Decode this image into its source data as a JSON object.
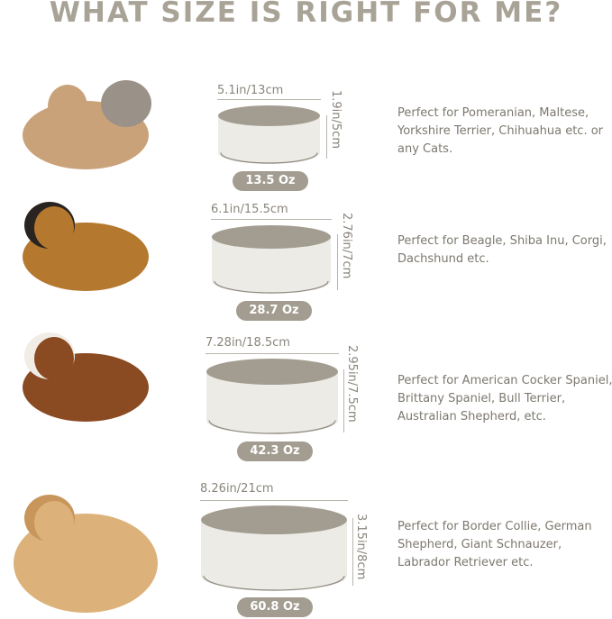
{
  "title": "WHAT SIZE IS RIGHT FOR ME?",
  "colors": {
    "bowl_inner": "#a39d91",
    "bowl_outer": "#ecebe6",
    "title": "#a8a396"
  },
  "sizes": [
    {
      "animal": "french-bulldog-and-kitten",
      "width": "5.1in/13cm",
      "height": "1.9in/5cm",
      "capacity": "13.5 Oz",
      "description": "Perfect for Pomeranian, Maltese, Yorkshire Terrier, Chihuahua etc. or any Cats."
    },
    {
      "animal": "beagle",
      "width": "6.1in/15.5cm",
      "height": "2.76in/7cm",
      "capacity": "28.7 Oz",
      "description": "Perfect for Beagle, Shiba Inu, Corgi, Dachshund etc."
    },
    {
      "animal": "cocker-spaniel",
      "width": "7.28in/18.5cm",
      "height": "2.95in/7.5cm",
      "capacity": "42.3 Oz",
      "description": "Perfect for American Cocker Spaniel, Brittany Spaniel, Bull Terrier, Australian Shepherd, etc."
    },
    {
      "animal": "labrador",
      "width": "8.26in/21cm",
      "height": "3.15in/8cm",
      "capacity": "60.8 Oz",
      "description": "Perfect for Border Collie, German Shepherd, Giant Schnauzer, Labrador Retriever etc."
    }
  ]
}
